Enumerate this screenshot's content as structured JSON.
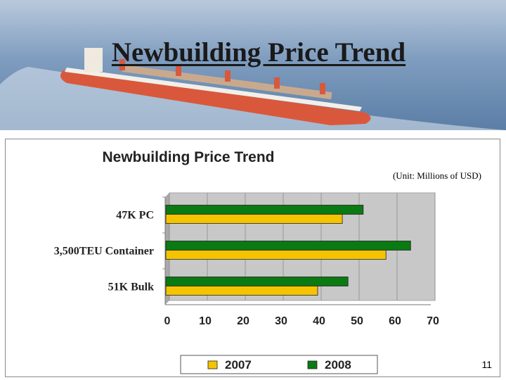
{
  "slide": {
    "title": "Newbuilding Price Trend",
    "page_number": "11"
  },
  "colors": {
    "series_2007": "#f5c400",
    "series_2008": "#0a7a12",
    "plot_bg": "#c8c8c8",
    "sea": "#6d8fb3",
    "hull": "#d9583c"
  },
  "banner": {
    "image": "container-ship-at-sea"
  },
  "chart_data": {
    "type": "bar",
    "orientation": "horizontal",
    "title": "Newbuilding Price Trend",
    "unit_note": "(Unit:  Millions of USD)",
    "categories": [
      "47K PC",
      "3,500TEU Container",
      "51K Bulk"
    ],
    "series": [
      {
        "name": "2007",
        "values": [
          46.5,
          58,
          40
        ]
      },
      {
        "name": "2008",
        "values": [
          52,
          64.5,
          48
        ]
      }
    ],
    "xlim": [
      0,
      70
    ],
    "xticks": [
      "0",
      "10",
      "20",
      "30",
      "40",
      "50",
      "60",
      "70"
    ],
    "grid": true,
    "legend": "bottom"
  }
}
